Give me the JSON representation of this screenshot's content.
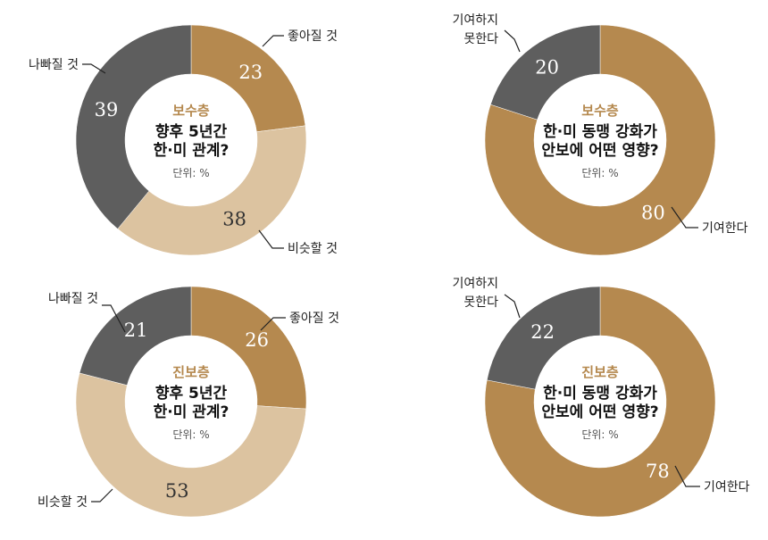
{
  "colors": {
    "gold": "#B5894F",
    "light": "#DCC3A0",
    "dark": "#5E5E5E",
    "group_text": "#B5894F",
    "value_on_dark": "#ffffff",
    "value_on_gold": "#ffffff",
    "value_on_light": "#333333"
  },
  "chart_data": [
    {
      "type": "pie",
      "style": "donut",
      "group": "보수층",
      "question_lines": [
        "향후 5년간",
        "한·미 관계?"
      ],
      "unit": "단위: %",
      "slices": [
        {
          "label": "좋아질 것",
          "value": 23,
          "color": "gold"
        },
        {
          "label": "비슷할 것",
          "value": 38,
          "color": "light"
        },
        {
          "label": "나빠질 것",
          "value": 39,
          "color": "dark"
        }
      ]
    },
    {
      "type": "pie",
      "style": "donut",
      "group": "보수층",
      "question_lines": [
        "한·미 동맹 강화가",
        "안보에 어떤 영향?"
      ],
      "unit": "단위: %",
      "slices": [
        {
          "label": "기여한다",
          "value": 80,
          "color": "gold"
        },
        {
          "label": "기여하지 못한다",
          "label_lines": [
            "기여하지",
            "못한다"
          ],
          "value": 20,
          "color": "dark"
        }
      ]
    },
    {
      "type": "pie",
      "style": "donut",
      "group": "진보층",
      "question_lines": [
        "향후 5년간",
        "한·미 관계?"
      ],
      "unit": "단위: %",
      "slices": [
        {
          "label": "좋아질 것",
          "value": 26,
          "color": "gold"
        },
        {
          "label": "비슷할 것",
          "value": 53,
          "color": "light"
        },
        {
          "label": "나빠질 것",
          "value": 21,
          "color": "dark"
        }
      ]
    },
    {
      "type": "pie",
      "style": "donut",
      "group": "진보층",
      "question_lines": [
        "한·미 동맹 강화가",
        "안보에 어떤 영향?"
      ],
      "unit": "단위: %",
      "slices": [
        {
          "label": "기여한다",
          "value": 78,
          "color": "gold"
        },
        {
          "label": "기여하지 못한다",
          "label_lines": [
            "기여하지",
            "못한다"
          ],
          "value": 22,
          "color": "dark"
        }
      ]
    }
  ]
}
